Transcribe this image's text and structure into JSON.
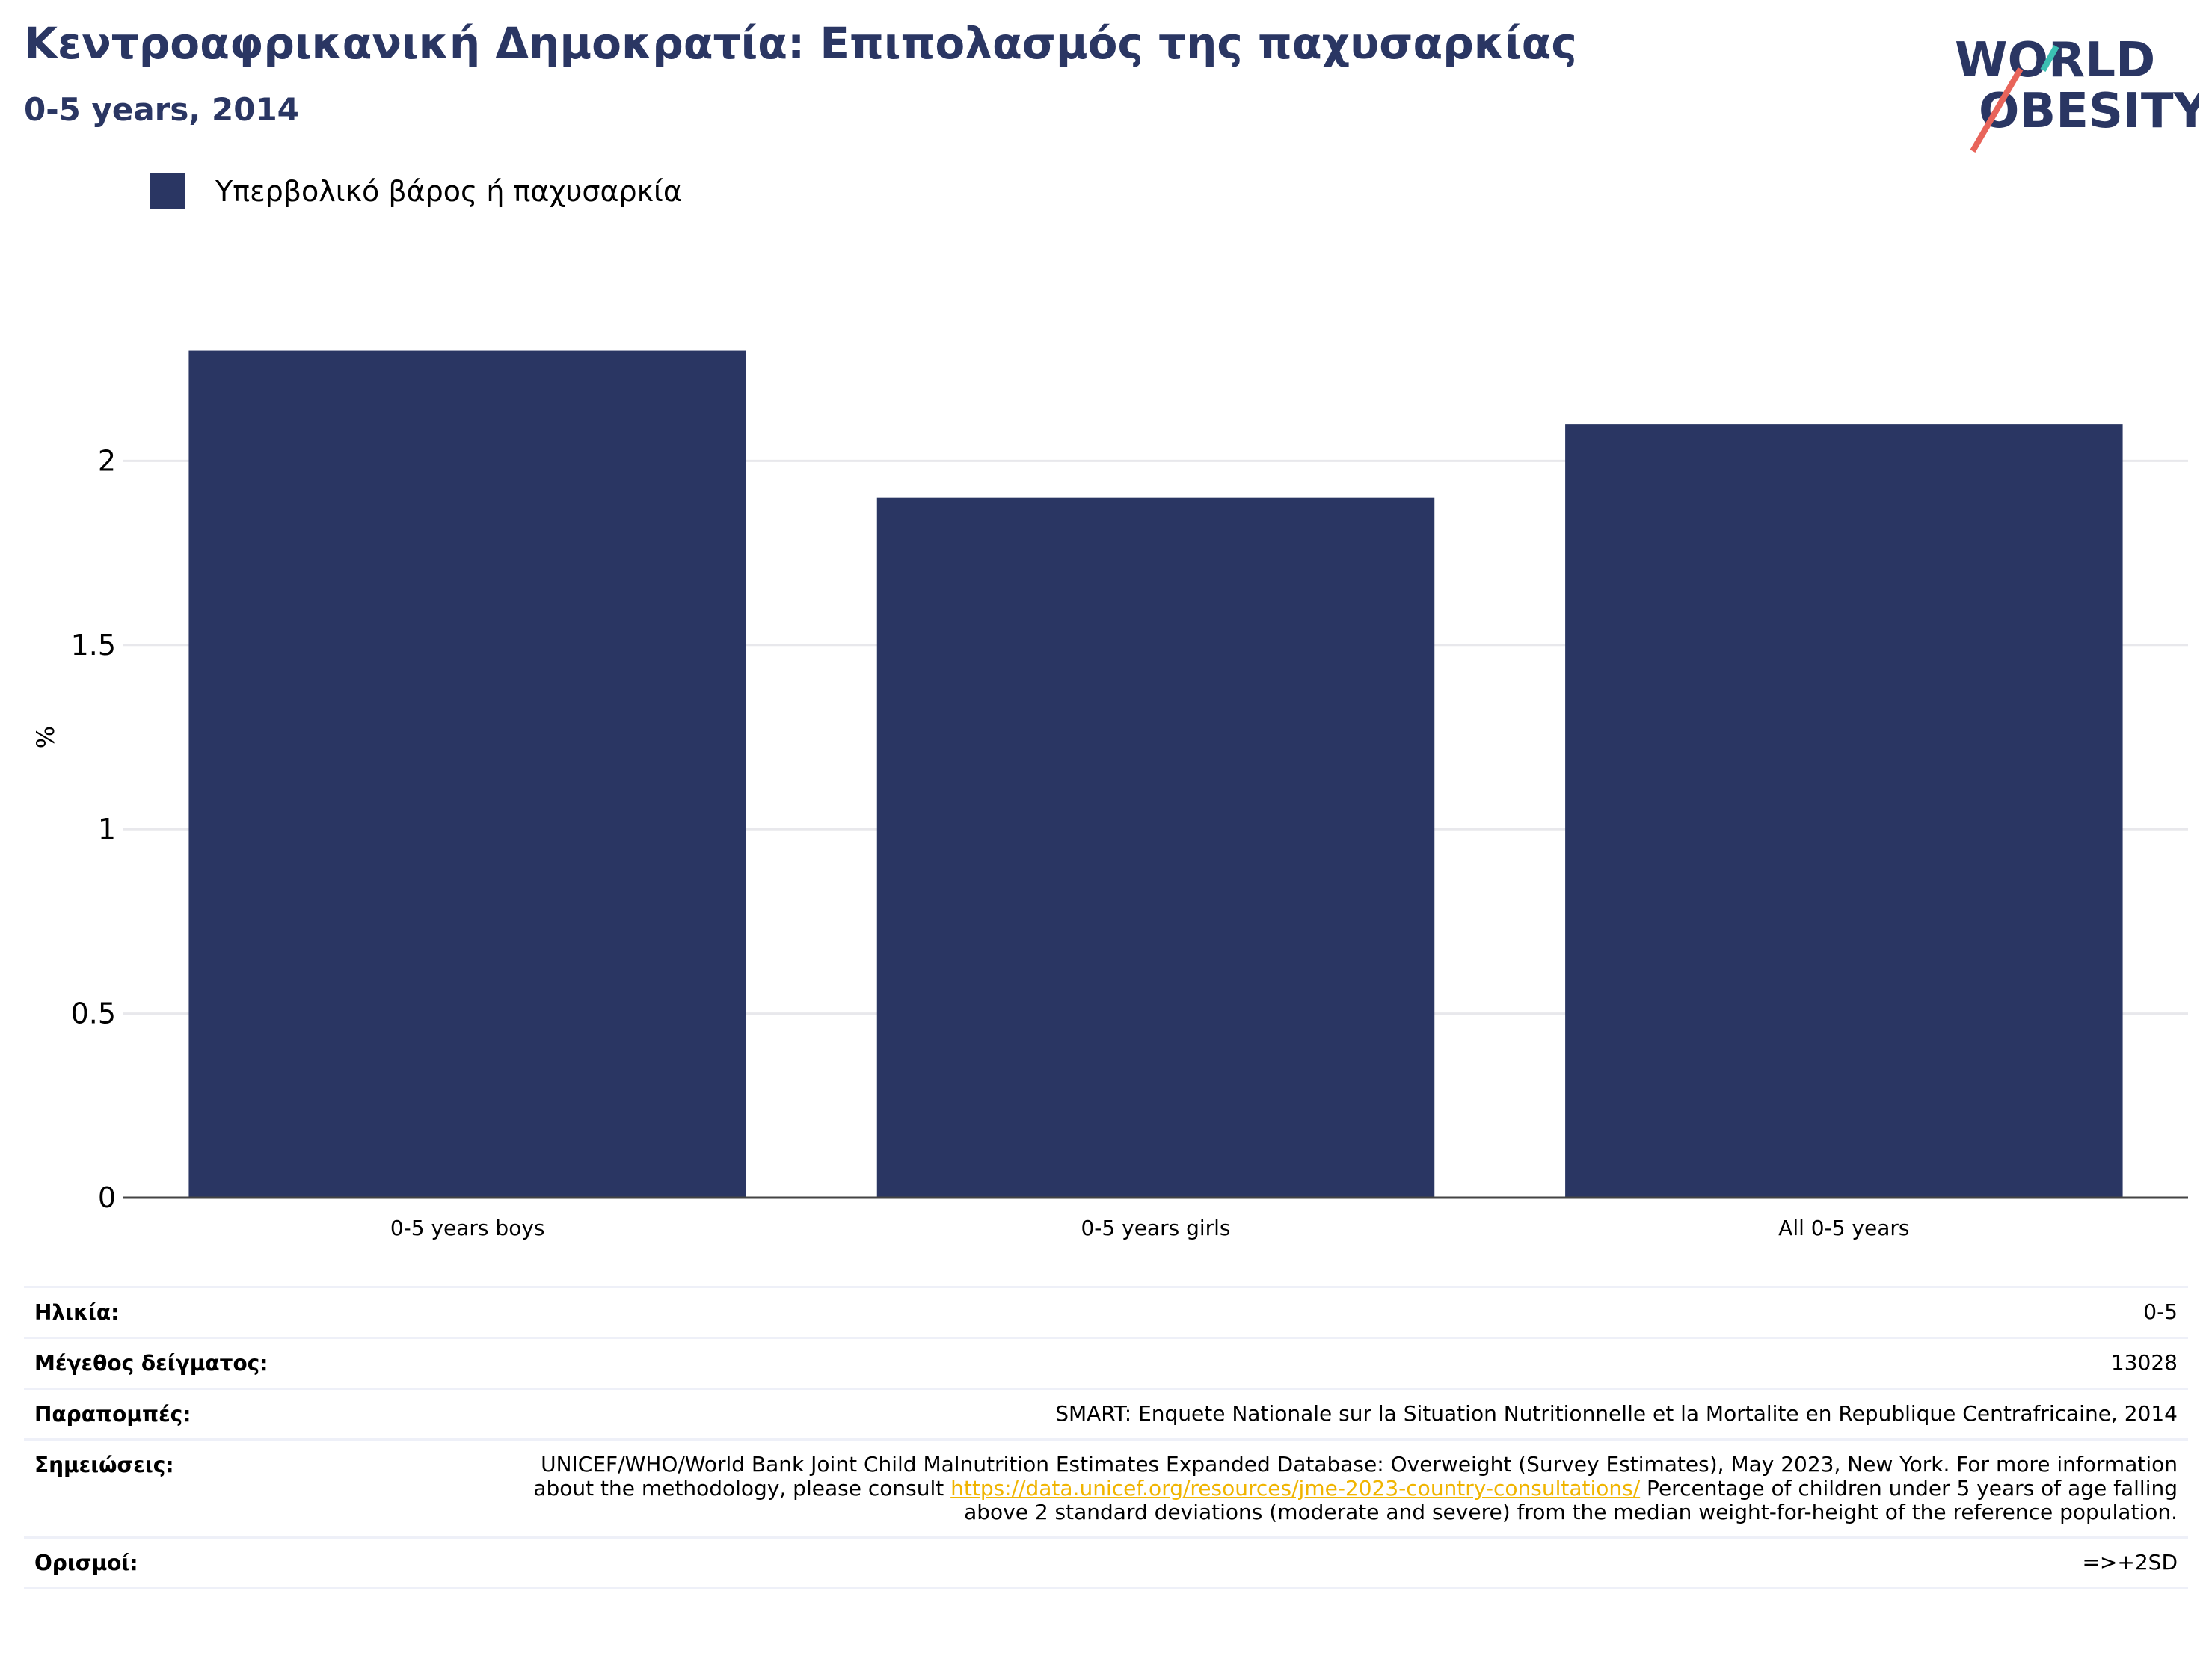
{
  "header": {
    "title": "Κεντροαφρικανική Δημοκρατία: Επιπολασμός της παχυσαρκίας",
    "subtitle": "0-5 years, 2014"
  },
  "logo": {
    "line1": "WORLD",
    "line2": "OBESITY",
    "accent_colors": [
      "#3bbfb2",
      "#e8645a"
    ]
  },
  "legend": {
    "label": "Υπερβολικό βάρος ή παχυσαρκία",
    "color": "#2a3663"
  },
  "chart_data": {
    "type": "bar",
    "categories": [
      "0-5 years boys",
      "0-5 years girls",
      "All 0-5 years"
    ],
    "series": [
      {
        "name": "Υπερβολικό βάρος ή παχυσαρκία",
        "values": [
          2.3,
          1.9,
          2.1
        ],
        "color": "#2a3663"
      }
    ],
    "ylabel": "%",
    "ylim": [
      0,
      2.5
    ],
    "yticks": [
      0,
      0.5,
      1,
      1.5,
      2
    ],
    "ytick_labels": [
      "0",
      "0.5",
      "1",
      "1.5",
      "2"
    ],
    "grid": true,
    "legend_position": "top-left"
  },
  "info": {
    "age_label": "Ηλικία:",
    "age_value": "0-5",
    "sample_label": "Μέγεθος δείγματος:",
    "sample_value": "13028",
    "refs_label": "Παραπομπές:",
    "refs_value": "SMART: Enquete Nationale sur la Situation Nutritionnelle et la Mortalite en Republique Centrafricaine, 2014",
    "notes_label": "Σημειώσεις:",
    "notes_before": "UNICEF/WHO/World Bank Joint Child Malnutrition Estimates Expanded Database: Overweight (Survey Estimates), May 2023, New York. For more information about the methodology, please consult ",
    "notes_link": "https://data.unicef.org/resources/jme-2023-country-consultations/",
    "notes_after": " Percentage of children under 5 years of age falling above 2 standard deviations (moderate and severe) from the median weight-for-height of the reference population.",
    "defs_label": "Ορισμοί:",
    "defs_value": "=>+2SD"
  }
}
